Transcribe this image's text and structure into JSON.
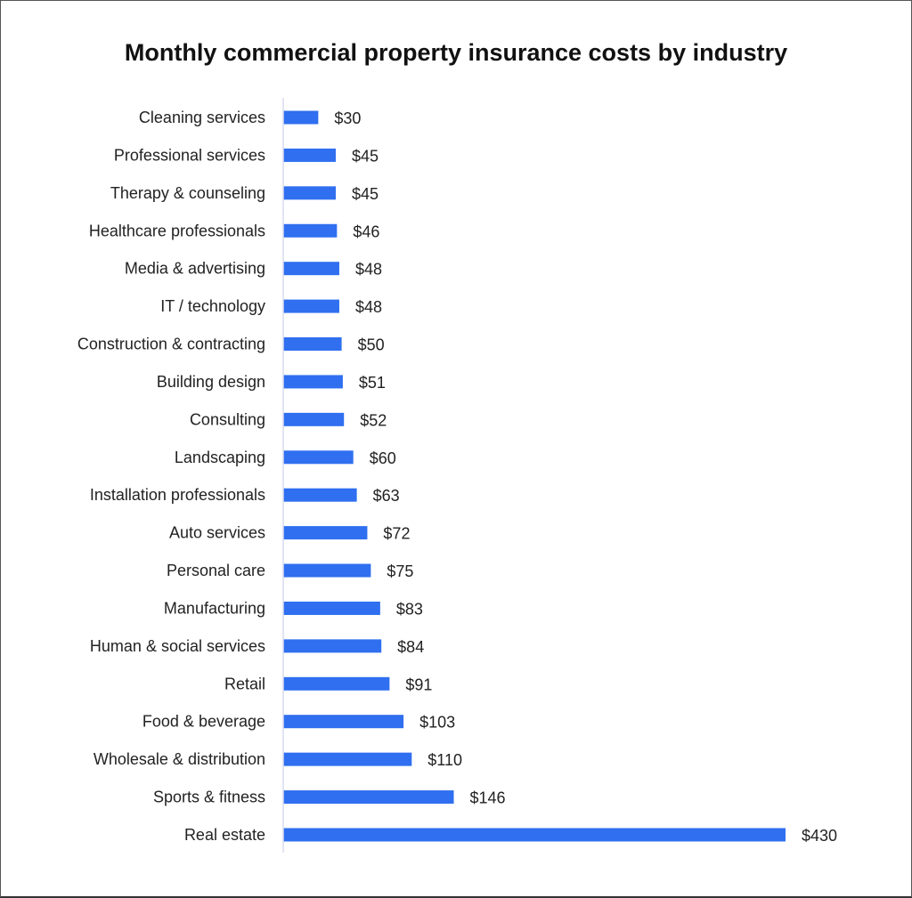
{
  "chart_data": {
    "type": "bar",
    "orientation": "horizontal",
    "title": "Monthly commercial property insurance costs by industry",
    "xlabel": "",
    "ylabel": "",
    "value_prefix": "$",
    "categories": [
      "Cleaning services",
      "Professional services",
      "Therapy & counseling",
      "Healthcare professionals",
      "Media & advertising",
      "IT / technology",
      "Construction & contracting",
      "Building design",
      "Consulting",
      "Landscaping",
      "Installation professionals",
      "Auto services",
      "Personal care",
      "Manufacturing",
      "Human & social services",
      "Retail",
      "Food & beverage",
      "Wholesale & distribution",
      "Sports & fitness",
      "Real estate"
    ],
    "values": [
      30,
      45,
      45,
      46,
      48,
      48,
      50,
      51,
      52,
      60,
      63,
      72,
      75,
      83,
      84,
      91,
      103,
      110,
      146,
      430
    ],
    "data_labels": [
      "$30",
      "$45",
      "$45",
      "$46",
      "$48",
      "$48",
      "$50",
      "$51",
      "$52",
      "$60",
      "$63",
      "$72",
      "$75",
      "$83",
      "$84",
      "$91",
      "$103",
      "$110",
      "$146",
      "$430"
    ],
    "xlim": [
      0,
      430
    ],
    "grid": false,
    "legend": "none",
    "colors": {
      "bar": "#2f6ff0",
      "axis": "#d8dcef"
    }
  }
}
